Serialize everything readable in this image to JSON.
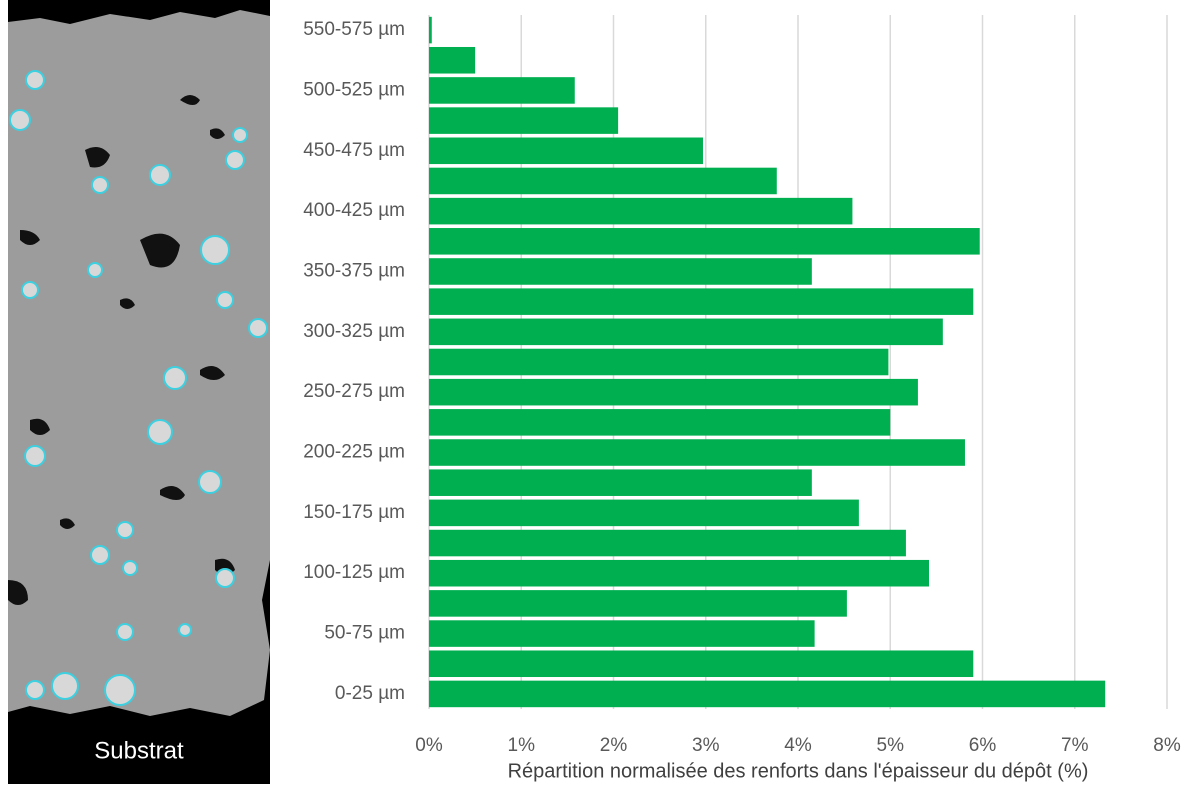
{
  "chart_data": {
    "type": "bar",
    "orientation": "horizontal",
    "x_label": "Répartition normalisée des renforts dans l'épaisseur du dépôt (%)",
    "annotation": "Substrat",
    "categories": [
      "0-25 µm",
      null,
      "50-75 µm",
      null,
      "100-125 µm",
      null,
      "150-175 µm",
      null,
      "200-225 µm",
      null,
      "250-275 µm",
      null,
      "300-325 µm",
      null,
      "350-375 µm",
      null,
      "400-425 µm",
      null,
      "450-475 µm",
      null,
      "500-525 µm",
      null,
      "550-575 µm"
    ],
    "values": [
      7.33,
      5.9,
      4.18,
      4.53,
      5.42,
      5.17,
      4.66,
      4.15,
      5.81,
      5.0,
      5.3,
      4.98,
      5.57,
      5.9,
      4.15,
      5.97,
      4.59,
      3.77,
      2.97,
      2.05,
      1.58,
      0.5,
      0.03
    ],
    "color": "#00b050",
    "xlim": [
      0,
      8
    ],
    "xticks": [
      {
        "value": 0,
        "label": "0%"
      },
      {
        "value": 1,
        "label": "1%"
      },
      {
        "value": 2,
        "label": "2%"
      },
      {
        "value": 3,
        "label": "3%"
      },
      {
        "value": 4,
        "label": "4%"
      },
      {
        "value": 5,
        "label": "5%"
      },
      {
        "value": 6,
        "label": "6%"
      },
      {
        "value": 7,
        "label": "7%"
      },
      {
        "value": 8,
        "label": "8%"
      }
    ],
    "grid": true
  }
}
